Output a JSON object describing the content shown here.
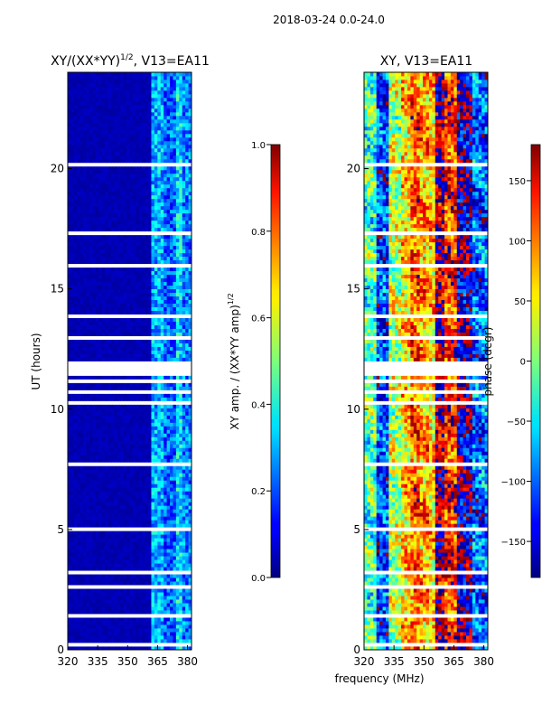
{
  "figure": {
    "suptitle": "2018-03-24 0.0-24.0",
    "shared_xlabel": "frequency (MHz)"
  },
  "chart_data": [
    {
      "type": "heatmap",
      "title": "XY/(XX*YY)",
      "title_sup": "1/2",
      "title_suffix": ", V13=EA11",
      "xlabel": "",
      "ylabel": "UT (hours)",
      "xlim": [
        320,
        382
      ],
      "ylim": [
        0,
        24
      ],
      "xticks": [
        320,
        335,
        350,
        365,
        380
      ],
      "yticks": [
        0,
        5,
        10,
        15,
        20
      ],
      "colormap": "jet",
      "flagged_bands_hours": [
        [
          22.3,
          22.4
        ],
        [
          20.1,
          20.2
        ],
        [
          19.9,
          20.0
        ],
        [
          18.4,
          18.5
        ],
        [
          17.8,
          17.85
        ],
        [
          17.55,
          17.6
        ],
        [
          17.3,
          17.35
        ],
        [
          17.05,
          17.1
        ],
        [
          16.2,
          16.25
        ],
        [
          15.95,
          16.0
        ],
        [
          15.1,
          15.15
        ],
        [
          14.05,
          14.15
        ],
        [
          13.85,
          13.9
        ],
        [
          12.95,
          13.0
        ],
        [
          12.6,
          12.65
        ],
        [
          11.4,
          11.95
        ],
        [
          11.1,
          11.2
        ],
        [
          10.7,
          10.85
        ],
        [
          10.2,
          10.35
        ],
        [
          9.7,
          9.8
        ],
        [
          9.3,
          9.35
        ],
        [
          8.5,
          8.55
        ],
        [
          8.2,
          8.25
        ],
        [
          7.7,
          7.75
        ],
        [
          7.3,
          7.35
        ],
        [
          6.7,
          6.75
        ],
        [
          6.1,
          6.15
        ],
        [
          5.0,
          5.05
        ],
        [
          4.6,
          4.65
        ],
        [
          3.6,
          3.65
        ],
        [
          3.4,
          3.45
        ],
        [
          3.2,
          3.25
        ],
        [
          2.8,
          2.85
        ],
        [
          2.6,
          2.65
        ],
        [
          1.6,
          1.7
        ],
        [
          1.4,
          1.45
        ],
        [
          1.0,
          1.05
        ],
        [
          0.6,
          0.65
        ],
        [
          0.4,
          0.45
        ],
        [
          0.2,
          0.25
        ]
      ],
      "amplitude_profile": [
        {
          "freq_range": [
            320,
            362
          ],
          "level": 0.05
        },
        {
          "freq_range": [
            362,
            368
          ],
          "level": 0.3
        },
        {
          "freq_range": [
            368,
            374
          ],
          "level": 0.22
        },
        {
          "freq_range": [
            374,
            378
          ],
          "level": 0.35
        },
        {
          "freq_range": [
            378,
            382
          ],
          "level": 0.25
        }
      ]
    },
    {
      "type": "colorbar",
      "label": "XY amp. / (XX*YY amp)",
      "label_sup": "1/2",
      "vmin": 0.0,
      "vmax": 1.0,
      "ticks": [
        "0.0",
        "0.2",
        "0.4",
        "0.6",
        "0.8",
        "1.0"
      ]
    },
    {
      "type": "heatmap",
      "title": "XY, V13=EA11",
      "xlabel": "frequency (MHz)",
      "ylabel": "",
      "xlim": [
        320,
        382
      ],
      "ylim": [
        0,
        24
      ],
      "xticks": [
        320,
        335,
        350,
        365,
        380
      ],
      "yticks": [
        0,
        5,
        10,
        15,
        20
      ],
      "colormap": "jet",
      "phase_profile": [
        {
          "freq_range": [
            320,
            326
          ],
          "phase": -20
        },
        {
          "freq_range": [
            326,
            332
          ],
          "phase": -110
        },
        {
          "freq_range": [
            332,
            338
          ],
          "phase": 20
        },
        {
          "freq_range": [
            338,
            344
          ],
          "phase": 60
        },
        {
          "freq_range": [
            344,
            348
          ],
          "phase": 100
        },
        {
          "freq_range": [
            348,
            352
          ],
          "phase": 80
        },
        {
          "freq_range": [
            352,
            356
          ],
          "phase": 60
        },
        {
          "freq_range": [
            356,
            360
          ],
          "phase": 170
        },
        {
          "freq_range": [
            360,
            366
          ],
          "phase": 120
        },
        {
          "freq_range": [
            366,
            374
          ],
          "phase": -160
        },
        {
          "freq_range": [
            374,
            382
          ],
          "phase": -100
        }
      ]
    },
    {
      "type": "colorbar",
      "label": "phase (degr)",
      "vmin": -180,
      "vmax": 180,
      "ticks": [
        "150",
        "100",
        "50",
        "0",
        "−50",
        "−100",
        "−150"
      ],
      "tick_values": [
        150,
        100,
        50,
        0,
        -50,
        -100,
        -150
      ]
    }
  ]
}
